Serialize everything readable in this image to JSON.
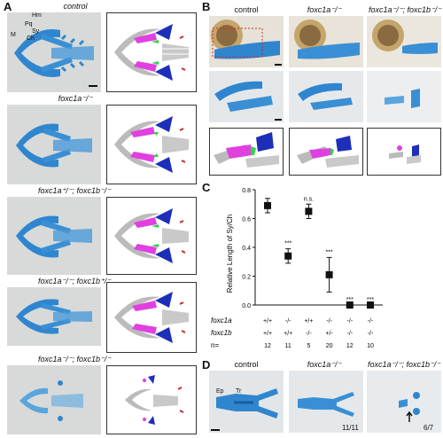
{
  "panels": {
    "A": "A",
    "B": "B",
    "C": "C",
    "D": "D"
  },
  "panelA": {
    "rows": [
      {
        "genotype": "control"
      },
      {
        "genotype": "foxc1a⁻/⁻"
      },
      {
        "genotype": "foxc1a⁺/⁻; foxc1b⁻/⁻"
      },
      {
        "genotype": "foxc1a⁻/⁻; foxc1b⁺/⁻"
      },
      {
        "genotype": "foxc1a⁻/⁻; foxc1b⁻/⁻"
      }
    ],
    "structure_labels": [
      "Hm",
      "Pq",
      "Sy",
      "Ch",
      "M"
    ]
  },
  "panelB": {
    "columns": [
      "control",
      "foxc1a⁻/⁻",
      "foxc1a⁻/⁻; foxc1b⁻/⁻"
    ]
  },
  "panelD": {
    "columns": [
      "control",
      "foxc1a⁻/⁻",
      "foxc1a⁻/⁻; foxc1b⁻/⁻"
    ],
    "labels": {
      "ep": "Ep",
      "tr": "Tr"
    },
    "counts": [
      "11/11",
      "6/7"
    ]
  },
  "chart_data": {
    "type": "scatter",
    "ylabel": "Relative Length of Sy/Ch",
    "ylim": [
      0,
      0.8
    ],
    "yticks": [
      "0.0",
      "0.2",
      "0.4",
      "0.6",
      "0.8"
    ],
    "points": [
      {
        "y": 0.69,
        "err": 0.05,
        "sig": ""
      },
      {
        "y": 0.34,
        "err": 0.05,
        "sig": "***"
      },
      {
        "y": 0.65,
        "err": 0.05,
        "sig": "n.s."
      },
      {
        "y": 0.21,
        "err": 0.12,
        "sig": "***"
      },
      {
        "y": 0.0,
        "err": 0.0,
        "sig": "***"
      },
      {
        "y": 0.0,
        "err": 0.0,
        "sig": "***"
      }
    ],
    "table": {
      "row_labels": [
        "foxc1a",
        "foxc1b",
        "n="
      ],
      "foxc1a": [
        "+/+",
        "-/-",
        "+/+",
        "-/-",
        "-/-",
        "-/-"
      ],
      "foxc1b": [
        "+/+",
        "+/+",
        "-/-",
        "+/-",
        "-/-",
        "-/-"
      ],
      "n": [
        "12",
        "11",
        "5",
        "20",
        "12",
        "10"
      ]
    }
  }
}
